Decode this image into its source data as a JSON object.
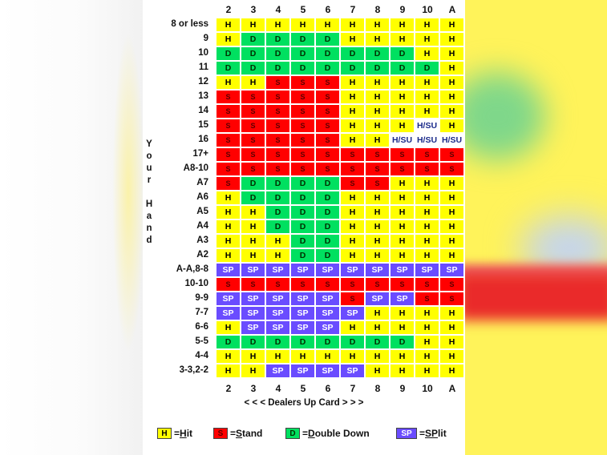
{
  "dealer_cards": [
    "2",
    "3",
    "4",
    "5",
    "6",
    "7",
    "8",
    "9",
    "10",
    "A"
  ],
  "axis": {
    "dealer_label": "< < < Dealers Up Card > > >",
    "hand_label_letters": [
      "Y",
      "o",
      "u",
      "r",
      "",
      "H",
      "a",
      "n",
      "d"
    ]
  },
  "rows": [
    {
      "hand": "8 or less",
      "cells": [
        "H",
        "H",
        "H",
        "H",
        "H",
        "H",
        "H",
        "H",
        "H",
        "H"
      ]
    },
    {
      "hand": "9",
      "cells": [
        "H",
        "D",
        "D",
        "D",
        "D",
        "H",
        "H",
        "H",
        "H",
        "H"
      ]
    },
    {
      "hand": "10",
      "cells": [
        "D",
        "D",
        "D",
        "D",
        "D",
        "D",
        "D",
        "D",
        "H",
        "H"
      ]
    },
    {
      "hand": "11",
      "cells": [
        "D",
        "D",
        "D",
        "D",
        "D",
        "D",
        "D",
        "D",
        "D",
        "H"
      ]
    },
    {
      "hand": "12",
      "cells": [
        "H",
        "H",
        "S",
        "S",
        "S",
        "H",
        "H",
        "H",
        "H",
        "H"
      ]
    },
    {
      "hand": "13",
      "cells": [
        "S",
        "S",
        "S",
        "S",
        "S",
        "H",
        "H",
        "H",
        "H",
        "H"
      ]
    },
    {
      "hand": "14",
      "cells": [
        "S",
        "S",
        "S",
        "S",
        "S",
        "H",
        "H",
        "H",
        "H",
        "H"
      ]
    },
    {
      "hand": "15",
      "cells": [
        "S",
        "S",
        "S",
        "S",
        "S",
        "H",
        "H",
        "H",
        "H/SU",
        "H"
      ]
    },
    {
      "hand": "16",
      "cells": [
        "S",
        "S",
        "S",
        "S",
        "S",
        "H",
        "H",
        "H/SU",
        "H/SU",
        "H/SU"
      ]
    },
    {
      "hand": "17+",
      "cells": [
        "S",
        "S",
        "S",
        "S",
        "S",
        "S",
        "S",
        "S",
        "S",
        "S"
      ]
    },
    {
      "hand": "A8-10",
      "cells": [
        "S",
        "S",
        "S",
        "S",
        "S",
        "S",
        "S",
        "S",
        "S",
        "S"
      ]
    },
    {
      "hand": "A7",
      "cells": [
        "S",
        "D",
        "D",
        "D",
        "D",
        "S",
        "S",
        "H",
        "H",
        "H"
      ]
    },
    {
      "hand": "A6",
      "cells": [
        "H",
        "D",
        "D",
        "D",
        "D",
        "H",
        "H",
        "H",
        "H",
        "H"
      ]
    },
    {
      "hand": "A5",
      "cells": [
        "H",
        "H",
        "D",
        "D",
        "D",
        "H",
        "H",
        "H",
        "H",
        "H"
      ]
    },
    {
      "hand": "A4",
      "cells": [
        "H",
        "H",
        "D",
        "D",
        "D",
        "H",
        "H",
        "H",
        "H",
        "H"
      ]
    },
    {
      "hand": "A3",
      "cells": [
        "H",
        "H",
        "H",
        "D",
        "D",
        "H",
        "H",
        "H",
        "H",
        "H"
      ]
    },
    {
      "hand": "A2",
      "cells": [
        "H",
        "H",
        "H",
        "D",
        "D",
        "H",
        "H",
        "H",
        "H",
        "H"
      ]
    },
    {
      "hand": "A-A,8-8",
      "cells": [
        "SP",
        "SP",
        "SP",
        "SP",
        "SP",
        "SP",
        "SP",
        "SP",
        "SP",
        "SP"
      ]
    },
    {
      "hand": "10-10",
      "cells": [
        "S",
        "S",
        "S",
        "S",
        "S",
        "S",
        "S",
        "S",
        "S",
        "S"
      ]
    },
    {
      "hand": "9-9",
      "cells": [
        "SP",
        "SP",
        "SP",
        "SP",
        "SP",
        "S",
        "SP",
        "SP",
        "S",
        "S"
      ]
    },
    {
      "hand": "7-7",
      "cells": [
        "SP",
        "SP",
        "SP",
        "SP",
        "SP",
        "SP",
        "H",
        "H",
        "H",
        "H"
      ]
    },
    {
      "hand": "6-6",
      "cells": [
        "H",
        "SP",
        "SP",
        "SP",
        "SP",
        "H",
        "H",
        "H",
        "H",
        "H"
      ]
    },
    {
      "hand": "5-5",
      "cells": [
        "D",
        "D",
        "D",
        "D",
        "D",
        "D",
        "D",
        "D",
        "H",
        "H"
      ]
    },
    {
      "hand": "4-4",
      "cells": [
        "H",
        "H",
        "H",
        "H",
        "H",
        "H",
        "H",
        "H",
        "H",
        "H"
      ]
    },
    {
      "hand": "3-3,2-2",
      "cells": [
        "H",
        "H",
        "SP",
        "SP",
        "SP",
        "SP",
        "H",
        "H",
        "H",
        "H"
      ]
    }
  ],
  "cell_text": {
    "H": "H",
    "S": "S",
    "D": "D",
    "SP": "SP",
    "H/SU": "H/SU"
  },
  "legend": [
    {
      "code": "H",
      "swatch": "H",
      "text_u": "H",
      "text_rest": "it",
      "sep": "= "
    },
    {
      "code": "S",
      "swatch": "S",
      "text_u": "S",
      "text_rest": "tand",
      "sep": "= "
    },
    {
      "code": "D",
      "swatch": "D",
      "text_u": "D",
      "text_rest": "ouble Down",
      "sep": "= "
    },
    {
      "code": "SP",
      "swatch": "SP",
      "text_u": "SP",
      "text_rest": "lit",
      "sep": "= "
    }
  ],
  "colors": {
    "hit": "#ffff00",
    "stand": "#ff0000",
    "double": "#00e060",
    "split": "#6a4cff",
    "hit_surrender": "#ffffff"
  }
}
